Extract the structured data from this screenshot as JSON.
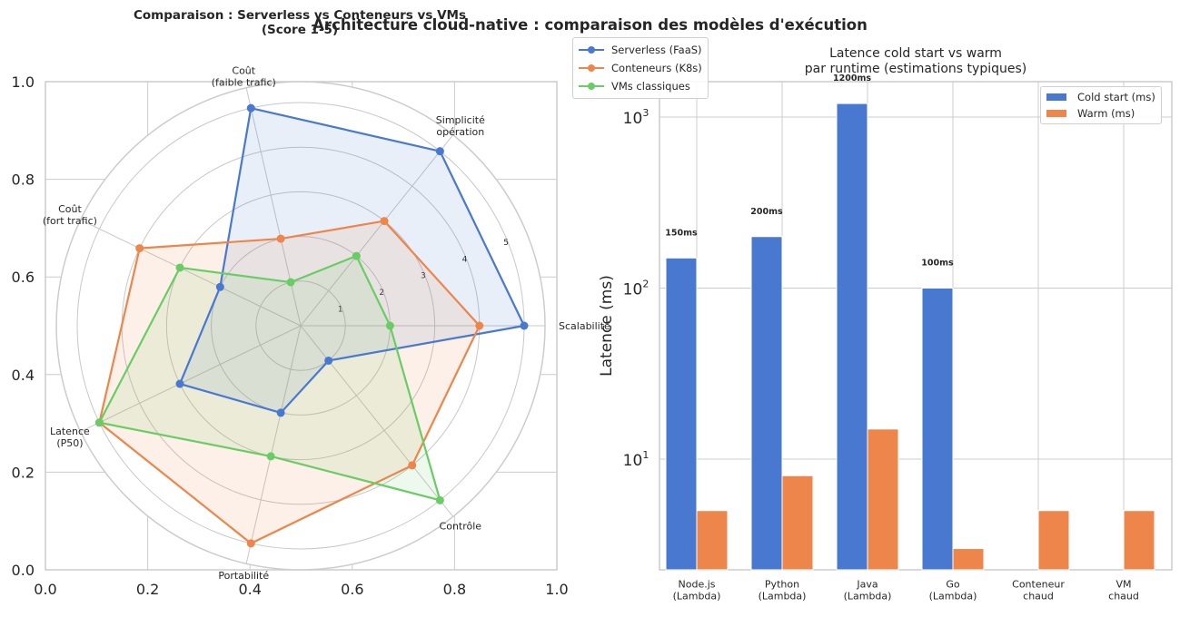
{
  "figure": {
    "suptitle": "Architecture cloud-native : comparaison des modèles d'exécution"
  },
  "chart_data": [
    {
      "type": "radar",
      "title": "Comparaison : Serverless vs Conteneurs vs VMs\n(Score 1-5)",
      "title_line1": "Comparaison : Serverless vs Conteneurs vs VMs",
      "title_line2": "(Score 1-5)",
      "axes": [
        "Scalabilité",
        "Simplicité\nopération",
        "Coût\n(faible trafic)",
        "Coût\n(fort trafic)",
        "Latence\n(P50)",
        "Portabilité",
        "Contrôle"
      ],
      "r_ticks": [
        1,
        2,
        3,
        4,
        5
      ],
      "r_max": 5,
      "series": [
        {
          "name": "Serverless (FaaS)",
          "color": "#4878d0",
          "values": [
            5,
            5,
            5,
            2,
            3,
            2,
            1
          ]
        },
        {
          "name": "Conteneurs (K8s)",
          "color": "#ee854a",
          "values": [
            4,
            3,
            2,
            4,
            5,
            5,
            4
          ]
        },
        {
          "name": "VMs classiques",
          "color": "#6acc64",
          "values": [
            2,
            2,
            1,
            3,
            5,
            3,
            5
          ]
        }
      ],
      "cartesian_ticks": {
        "x": [
          "0.0",
          "0.2",
          "0.4",
          "0.6",
          "0.8",
          "1.0"
        ],
        "y": [
          "0.0",
          "0.2",
          "0.4",
          "0.6",
          "0.8",
          "1.0"
        ]
      },
      "legend_position": "upper right (outside)"
    },
    {
      "type": "bar",
      "title": "Latence cold start vs warm\npar runtime (estimations typiques)",
      "title_line1": "Latence cold start vs warm",
      "title_line2": "par runtime (estimations typiques)",
      "xlabel": "",
      "ylabel": "Latence (ms)",
      "yscale": "log",
      "ylim": [
        2.25,
        1500
      ],
      "y_ticks": [
        "10^1",
        "10^2",
        "10^3"
      ],
      "categories": [
        "Node.js\n(Lambda)",
        "Python\n(Lambda)",
        "Java\n(Lambda)",
        "Go\n(Lambda)",
        "Conteneur\nchaud",
        "VM\nchaud"
      ],
      "series": [
        {
          "name": "Cold start (ms)",
          "color": "#4878d0",
          "values": [
            150,
            200,
            1200,
            100,
            0,
            0
          ]
        },
        {
          "name": "Warm (ms)",
          "color": "#ee854a",
          "values": [
            5,
            8,
            15,
            3,
            5,
            5
          ]
        }
      ],
      "annotations": [
        "150ms",
        "200ms",
        "1200ms",
        "100ms"
      ],
      "legend_position": "upper right",
      "grid": true
    }
  ]
}
